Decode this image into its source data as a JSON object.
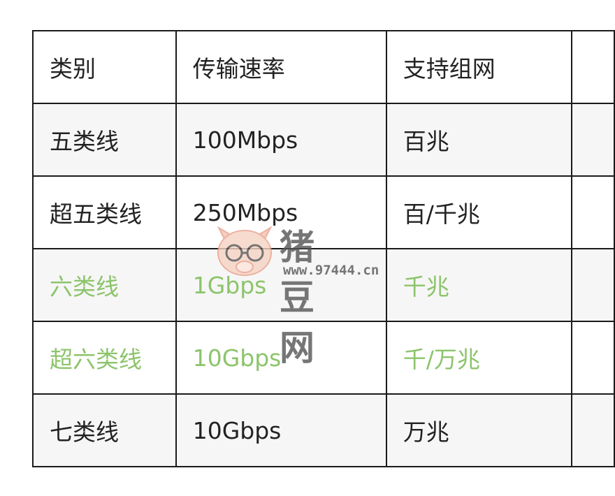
{
  "table": {
    "headers": [
      "类别",
      "传输速率",
      "支持组网",
      ""
    ],
    "rows": [
      {
        "category": "五类线",
        "rate": "100Mbps",
        "network": "百兆",
        "highlight": false
      },
      {
        "category": "超五类线",
        "rate": "250Mbps",
        "network": "百/千兆",
        "highlight": false
      },
      {
        "category": "六类线",
        "rate": "1Gbps",
        "network": "千兆",
        "highlight": true
      },
      {
        "category": "超六类线",
        "rate": "10Gbps",
        "network": "千/万兆",
        "highlight": true
      },
      {
        "category": "七类线",
        "rate": "10Gbps",
        "network": "万兆",
        "highlight": false
      }
    ]
  },
  "colors": {
    "highlight_text": "#8cc46b",
    "text": "#222222",
    "stripe": "#f6f6f6"
  },
  "watermark": {
    "name": "猪豆网",
    "url": "www.97444.cn",
    "icon": "pig-with-glasses-logo"
  }
}
